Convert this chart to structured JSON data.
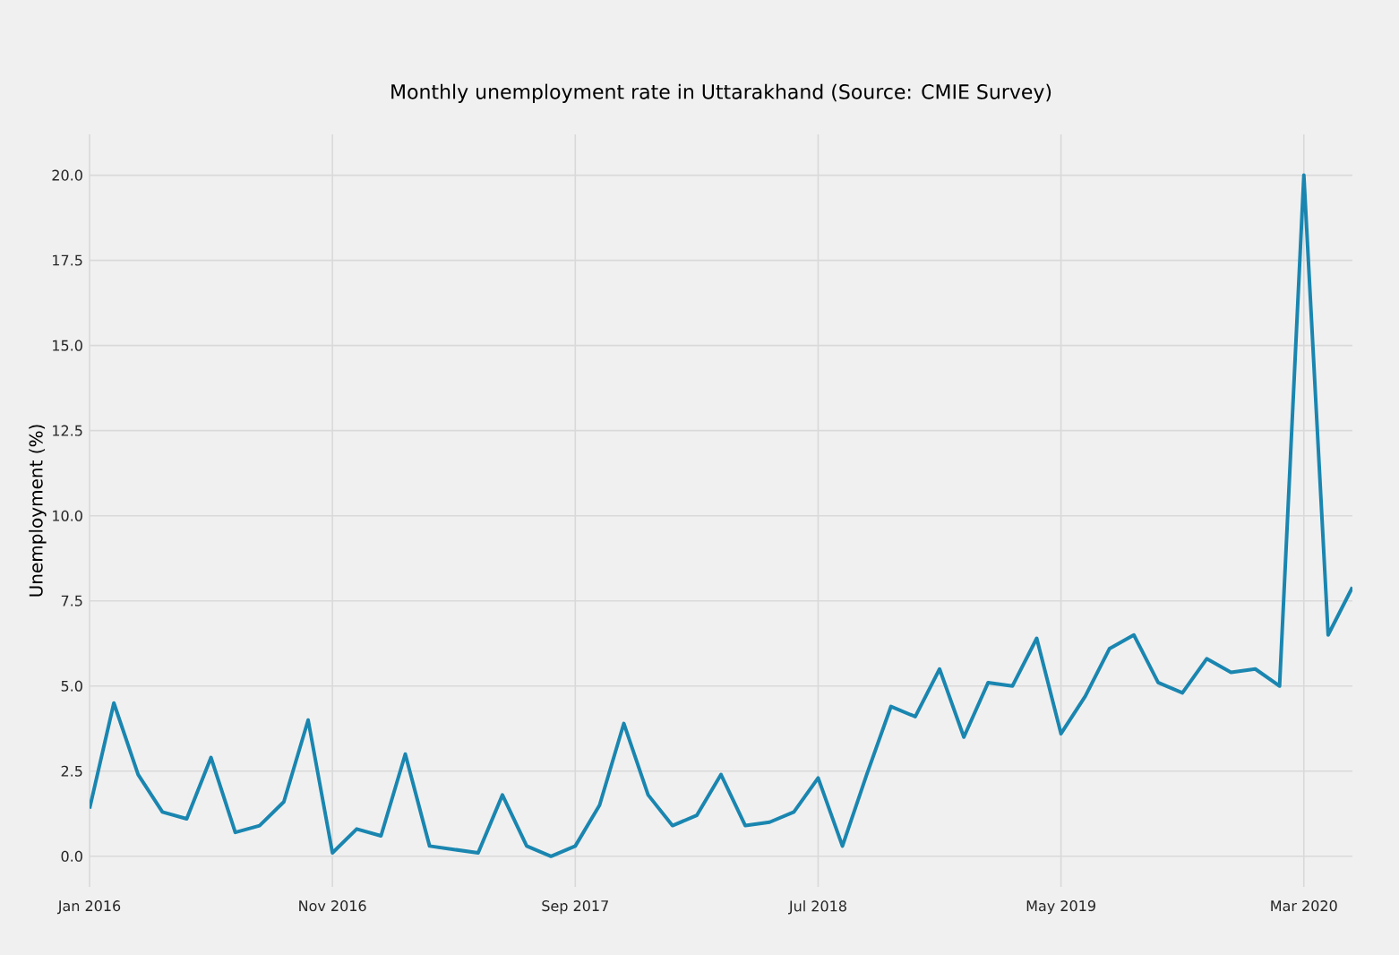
{
  "chart_data": {
    "type": "line",
    "title": "Monthly unemployment rate in Uttarakhand (Source: CMIE Survey)",
    "ylabel": "Unemployment (%)",
    "x": [
      "2016-01",
      "2016-02",
      "2016-03",
      "2016-04",
      "2016-05",
      "2016-06",
      "2016-07",
      "2016-08",
      "2016-09",
      "2016-10",
      "2016-11",
      "2016-12",
      "2017-01",
      "2017-02",
      "2017-03",
      "2017-04",
      "2017-05",
      "2017-06",
      "2017-07",
      "2017-08",
      "2017-09",
      "2017-10",
      "2017-11",
      "2017-12",
      "2018-01",
      "2018-02",
      "2018-03",
      "2018-04",
      "2018-05",
      "2018-06",
      "2018-07",
      "2018-08",
      "2018-09",
      "2018-10",
      "2018-11",
      "2018-12",
      "2019-01",
      "2019-02",
      "2019-03",
      "2019-04",
      "2019-05",
      "2019-06",
      "2019-07",
      "2019-08",
      "2019-09",
      "2019-10",
      "2019-11",
      "2019-12",
      "2020-01",
      "2020-02",
      "2020-03",
      "2020-04",
      "2020-05"
    ],
    "series": [
      {
        "color": "#1a86b0",
        "values": [
          1.4,
          4.5,
          2.4,
          1.3,
          1.1,
          2.9,
          0.7,
          0.9,
          1.6,
          4.0,
          0.1,
          0.8,
          0.6,
          3.0,
          0.3,
          0.2,
          0.1,
          1.8,
          0.3,
          0.0,
          0.3,
          1.5,
          3.9,
          1.8,
          0.9,
          1.2,
          2.4,
          0.9,
          1.0,
          1.3,
          2.3,
          0.3,
          2.4,
          4.4,
          4.1,
          5.5,
          3.5,
          5.1,
          5.0,
          6.4,
          3.6,
          4.7,
          6.1,
          6.5,
          5.1,
          4.8,
          5.8,
          5.4,
          5.5,
          5.0,
          20.0,
          6.5,
          7.9
        ]
      }
    ],
    "xlim": [
      "2016-01",
      "2020-05"
    ],
    "xticks": [
      {
        "value": "2016-01",
        "label": "Jan 2016"
      },
      {
        "value": "2016-11",
        "label": "Nov 2016"
      },
      {
        "value": "2017-09",
        "label": "Sep 2017"
      },
      {
        "value": "2018-07",
        "label": "Jul 2018"
      },
      {
        "value": "2019-05",
        "label": "May 2019"
      },
      {
        "value": "2020-03",
        "label": "Mar 2020"
      }
    ],
    "ylim": [
      -0.9,
      21.2
    ],
    "yticks": [
      {
        "value": 0,
        "label": "0.0"
      },
      {
        "value": 2.5,
        "label": "2.5"
      },
      {
        "value": 5,
        "label": "5.0"
      },
      {
        "value": 7.5,
        "label": "7.5"
      },
      {
        "value": 10,
        "label": "10.0"
      },
      {
        "value": 12.5,
        "label": "12.5"
      },
      {
        "value": 15,
        "label": "15.0"
      },
      {
        "value": 17.5,
        "label": "17.5"
      },
      {
        "value": 20,
        "label": "20.0"
      }
    ],
    "grid": true
  }
}
